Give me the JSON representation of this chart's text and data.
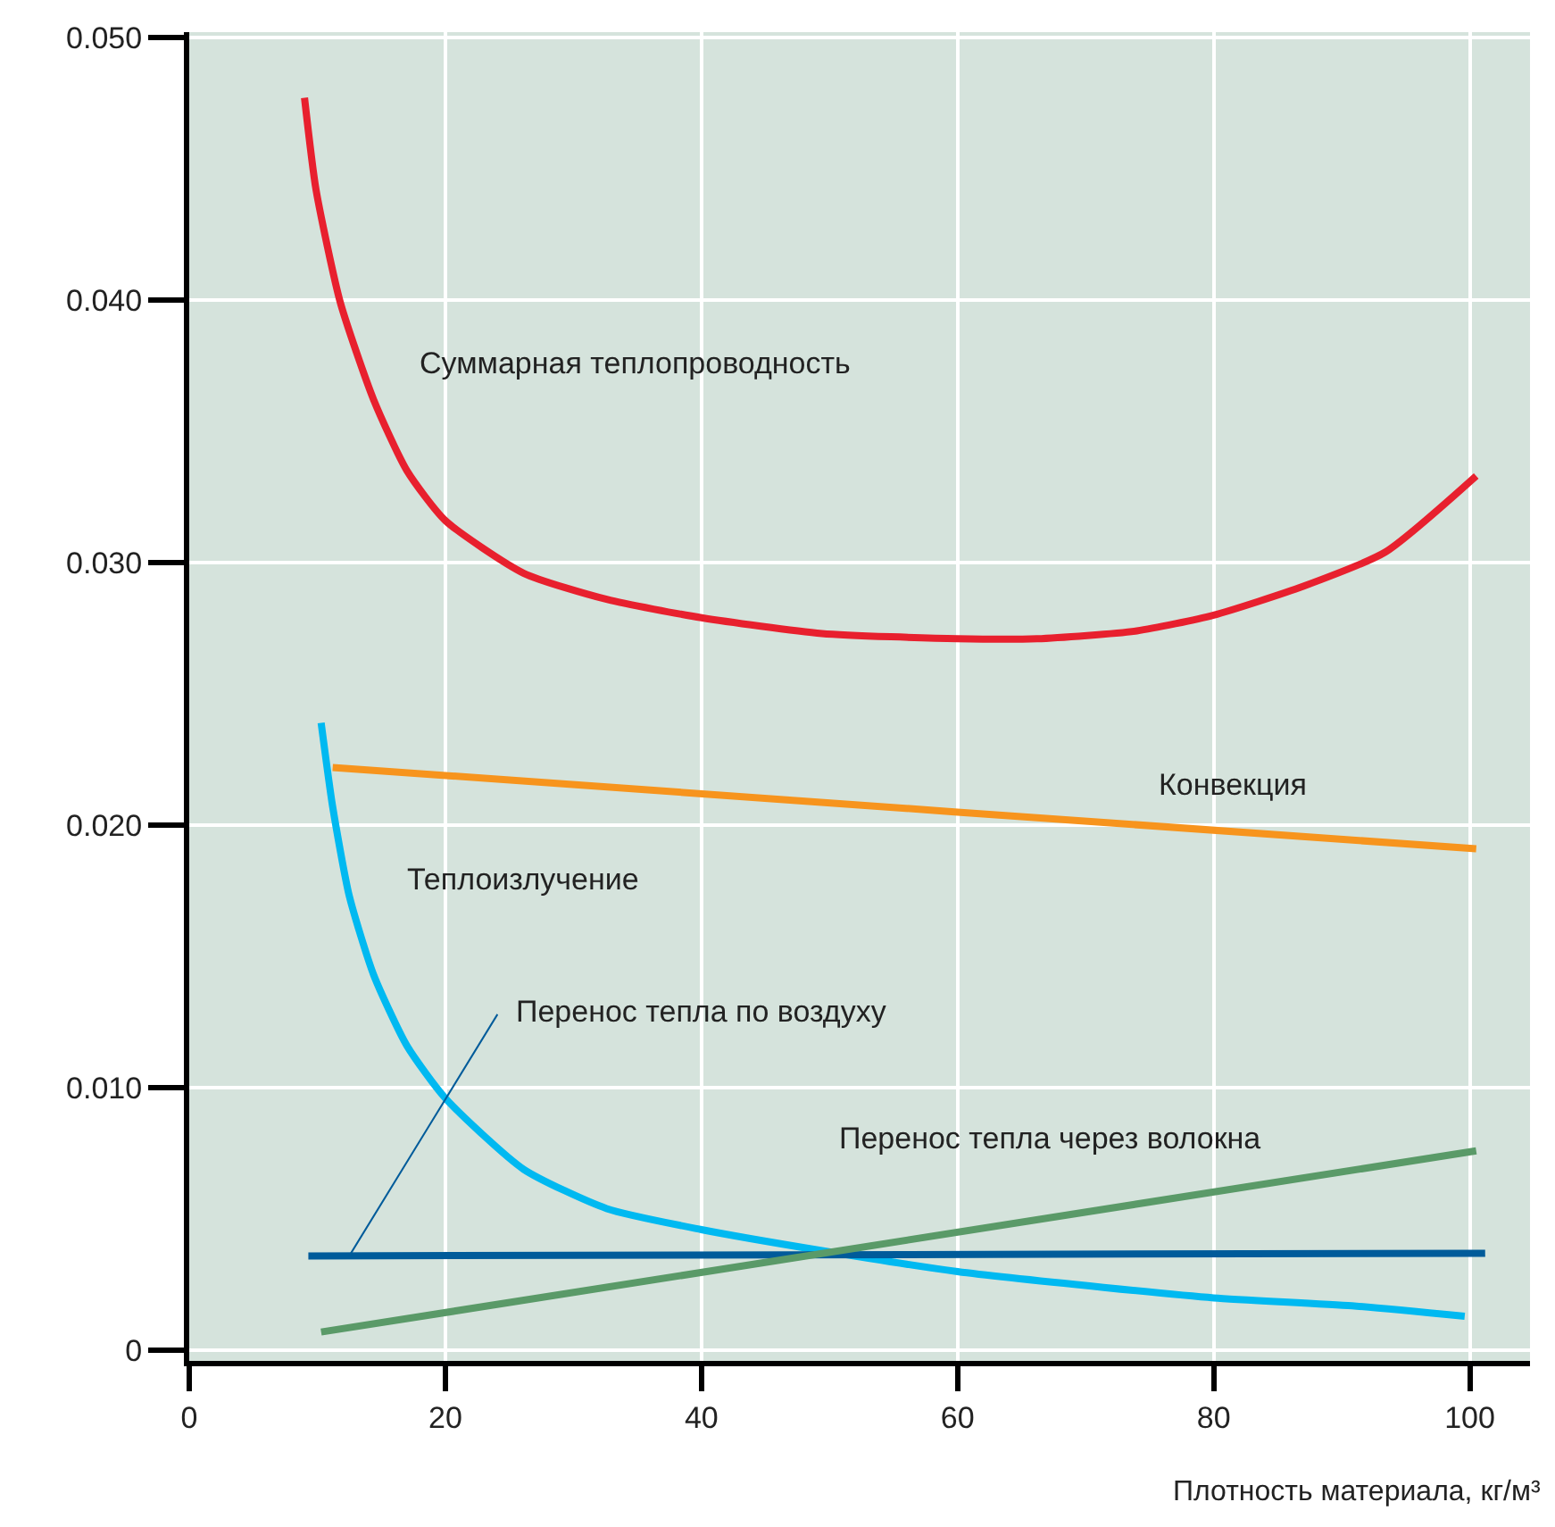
{
  "chart_data": {
    "type": "line",
    "xlabel": "Плотность материала, кг/м³",
    "xlim": [
      0,
      104.7
    ],
    "ylim": [
      -0.0004,
      0.0502
    ],
    "xticks": [
      0,
      20,
      40,
      60,
      80,
      100
    ],
    "yticks": [
      {
        "value": 0,
        "label": "0"
      },
      {
        "value": 0.01,
        "label": "0.010"
      },
      {
        "value": 0.02,
        "label": "0.020"
      },
      {
        "value": 0.03,
        "label": "0.030"
      },
      {
        "value": 0.04,
        "label": "0.040"
      },
      {
        "value": 0.05,
        "label": "0.050"
      }
    ],
    "grid": true,
    "legend": false,
    "marker": "none",
    "line_style": "solid",
    "series": [
      {
        "name": "Суммарная теплопроводность",
        "color": "#e8202e",
        "x": [
          9.0,
          9.9,
          11.8,
          14.4,
          17.0,
          20,
          26.1,
          32.6,
          40,
          49.4,
          60,
          66.2,
          74,
          80,
          87,
          93.4,
          100.5
        ],
        "values": [
          0.0477,
          0.0442,
          0.0399,
          0.0362,
          0.0335,
          0.0316,
          0.0296,
          0.0286,
          0.0279,
          0.0273,
          0.0271,
          0.0271,
          0.0274,
          0.028,
          0.0291,
          0.0304,
          0.0333
        ]
      },
      {
        "name": "Конвекция",
        "color": "#f7941d",
        "x": [
          11.2,
          60,
          100.5
        ],
        "values": [
          0.0222,
          0.0205,
          0.0191
        ]
      },
      {
        "name": "Теплоизлучение",
        "color": "#00b9f1",
        "x": [
          10.3,
          11.2,
          12.5,
          14.4,
          17,
          20,
          26.1,
          32.6,
          40,
          49.4,
          60,
          71.4,
          80,
          90.8,
          99.6
        ],
        "values": [
          0.0239,
          0.0207,
          0.0173,
          0.0143,
          0.0116,
          0.0096,
          0.0069,
          0.0054,
          0.0046,
          0.0038,
          0.003,
          0.0024,
          0.002,
          0.0017,
          0.0013
        ]
      },
      {
        "name": "Перенос тепла по воздуху",
        "color": "#005b9a",
        "x": [
          9.3,
          101.2
        ],
        "values": [
          0.0036,
          0.0037
        ]
      },
      {
        "name": "Перенос тепла через волокна",
        "color": "#5a9a68",
        "x": [
          10.3,
          100.5
        ],
        "values": [
          0.0007,
          0.0076
        ]
      }
    ]
  }
}
